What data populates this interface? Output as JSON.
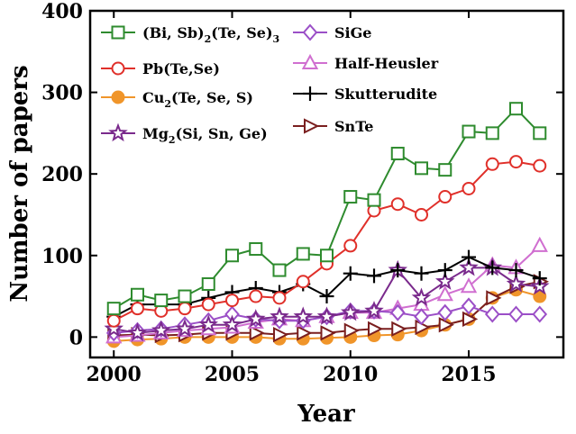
{
  "chart_data": {
    "type": "line",
    "xlabel": "Year",
    "ylabel": "Number of papers",
    "xlim": [
      1999,
      2019
    ],
    "ylim": [
      -25,
      400
    ],
    "xticks": [
      2000,
      2005,
      2010,
      2015
    ],
    "yticks": [
      0,
      100,
      200,
      300,
      400
    ],
    "x": [
      2000,
      2001,
      2002,
      2003,
      2004,
      2005,
      2006,
      2007,
      2008,
      2009,
      2010,
      2011,
      2012,
      2013,
      2014,
      2015,
      2016,
      2017,
      2018
    ],
    "legend_position": "top-left, two columns",
    "series": [
      {
        "name": "(Bi, Sb)₂(Te, Se)₃",
        "color": "#2e8b2e",
        "marker": "square",
        "filled": false,
        "values": [
          35,
          52,
          45,
          50,
          65,
          100,
          108,
          82,
          102,
          100,
          172,
          168,
          225,
          207,
          205,
          252,
          250,
          280,
          250
        ]
      },
      {
        "name": "Pb(Te,Se)",
        "color": "#e0302a",
        "marker": "circle",
        "filled": false,
        "values": [
          20,
          35,
          32,
          35,
          40,
          45,
          50,
          48,
          68,
          90,
          112,
          155,
          163,
          150,
          172,
          182,
          212,
          215,
          210
        ]
      },
      {
        "name": "Cu₂(Te, Se, S)",
        "color": "#f0952a",
        "marker": "circle",
        "filled": true,
        "values": [
          -5,
          -3,
          -2,
          0,
          0,
          0,
          0,
          -2,
          -2,
          -1,
          0,
          2,
          3,
          8,
          15,
          22,
          48,
          58,
          50
        ]
      },
      {
        "name": "Mg₂(Si, Sn, Ge)",
        "color": "#7a2a8c",
        "marker": "star",
        "filled": false,
        "values": [
          10,
          5,
          8,
          10,
          15,
          15,
          22,
          25,
          25,
          25,
          30,
          32,
          82,
          48,
          68,
          85,
          85,
          65,
          62
        ]
      },
      {
        "name": "SiGe",
        "color": "#9b4fc7",
        "marker": "diamond",
        "filled": false,
        "values": [
          5,
          8,
          10,
          15,
          20,
          28,
          22,
          20,
          20,
          25,
          32,
          32,
          30,
          25,
          30,
          38,
          28,
          28,
          28
        ]
      },
      {
        "name": "Half-Heusler",
        "color": "#d06fd0",
        "marker": "triangle-up",
        "filled": false,
        "values": [
          0,
          2,
          5,
          8,
          10,
          12,
          18,
          22,
          20,
          25,
          30,
          30,
          35,
          40,
          52,
          62,
          88,
          85,
          112
        ]
      },
      {
        "name": "Skutterudite",
        "color": "#000000",
        "marker": "plus",
        "filled": false,
        "values": [
          25,
          40,
          40,
          40,
          48,
          55,
          60,
          55,
          65,
          50,
          78,
          75,
          82,
          78,
          82,
          98,
          85,
          82,
          72
        ]
      },
      {
        "name": "SnTe",
        "color": "#7a1f1f",
        "marker": "triangle-right",
        "filled": false,
        "values": [
          2,
          3,
          2,
          3,
          5,
          5,
          5,
          3,
          5,
          5,
          8,
          10,
          10,
          12,
          15,
          22,
          48,
          62,
          68
        ]
      }
    ],
    "legend": [
      {
        "base": "(Bi, Sb)",
        "sub": "2",
        "rest": "(Te, Se)",
        "sub2": "3"
      },
      {
        "base": "Pb(Te,Se)"
      },
      {
        "base": "Cu",
        "sub": "2",
        "rest": "(Te, Se, S)"
      },
      {
        "base": "Mg",
        "sub": "2",
        "rest": "(Si, Sn, Ge)"
      },
      {
        "base": "SiGe"
      },
      {
        "base": "Half-Heusler"
      },
      {
        "base": "Skutterudite"
      },
      {
        "base": "SnTe"
      }
    ]
  }
}
